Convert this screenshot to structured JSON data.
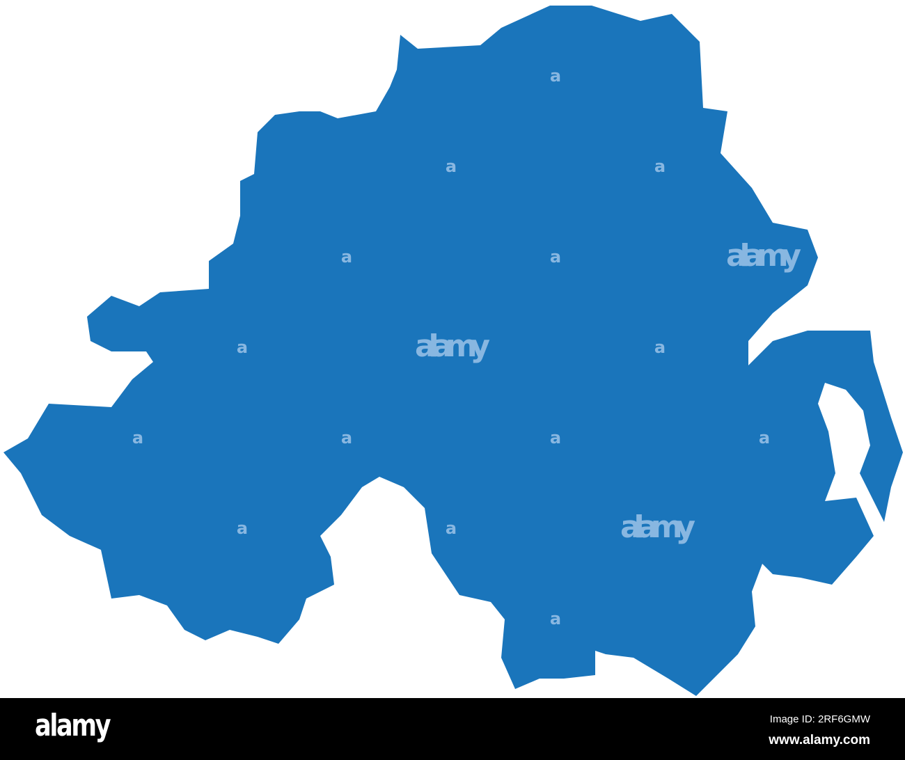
{
  "map": {
    "region": "Northern Ireland",
    "fill_color": "#1a75bb",
    "background_color": "#ffffff"
  },
  "watermark": {
    "text": "alamy",
    "small_mark": "a"
  },
  "footer": {
    "logo": "alamy",
    "image_id": "Image ID: 2RF6GMW",
    "url": "www.alamy.com"
  }
}
